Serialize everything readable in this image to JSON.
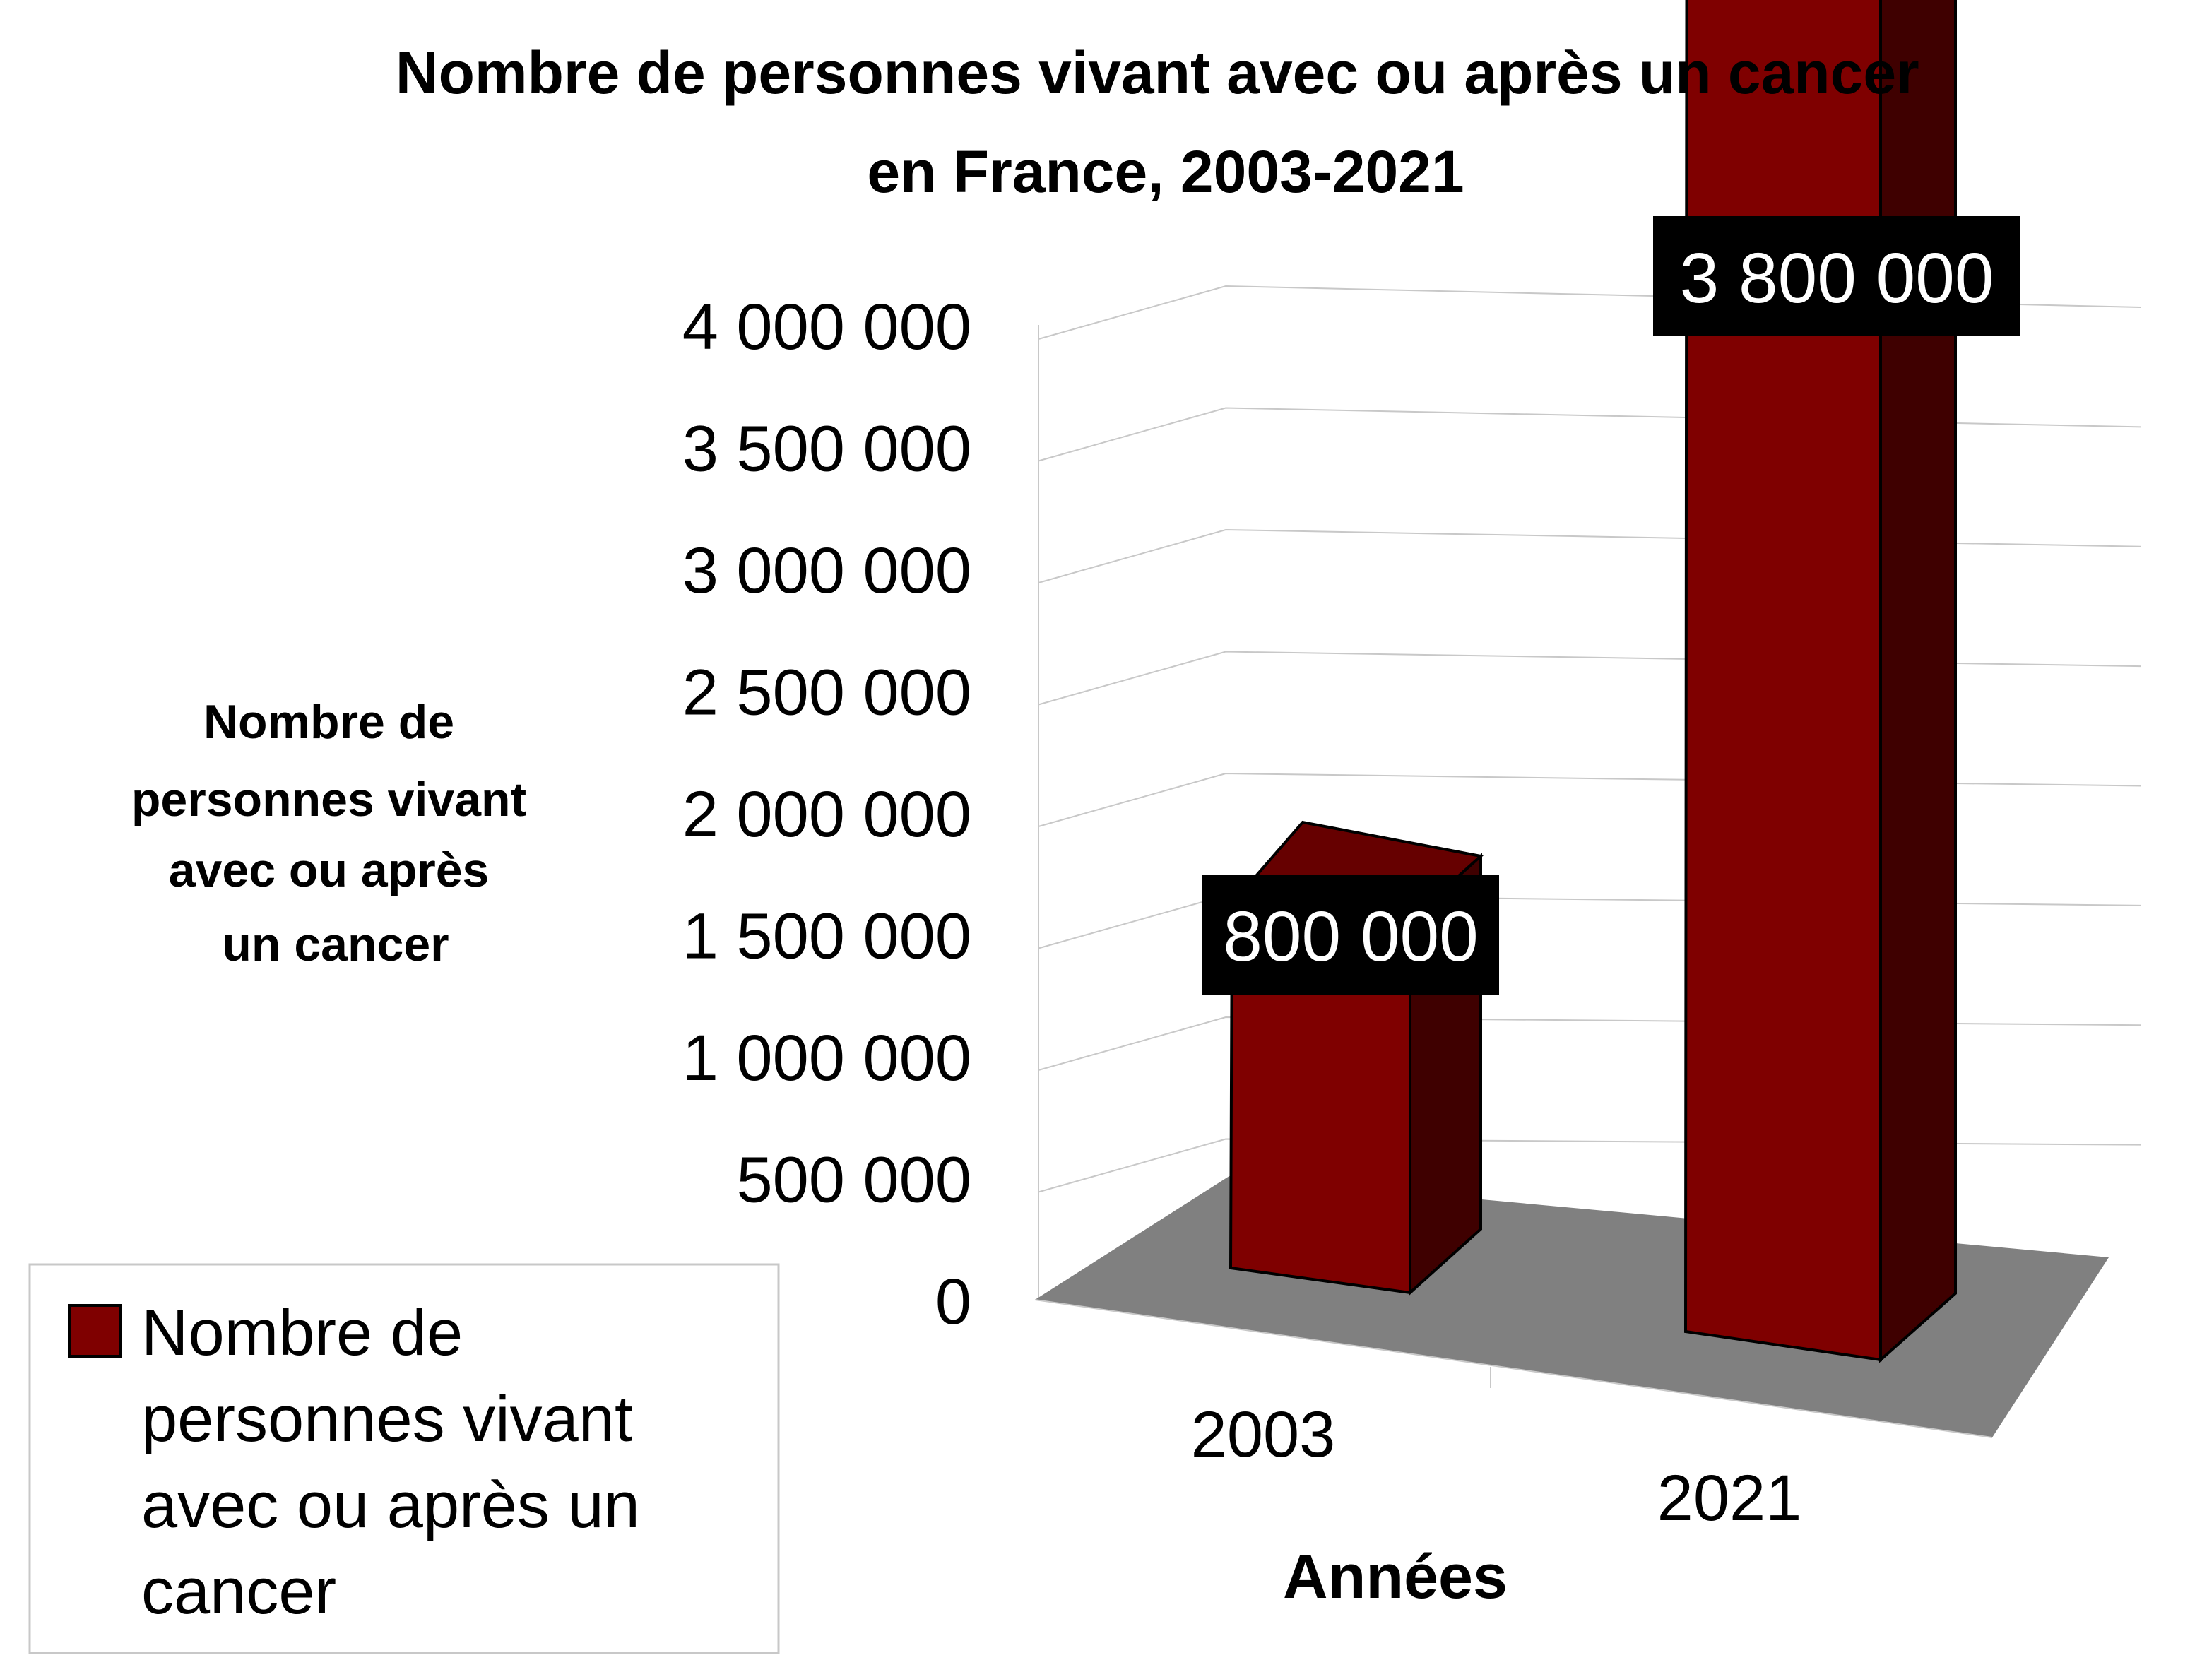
{
  "chart_data": {
    "type": "bar",
    "title_lines": [
      "Nombre de personnes vivant avec ou après un cancer",
      "en France, 2003-2021"
    ],
    "ylabel_lines": [
      "Nombre de",
      "personnes vivant",
      "avec ou après",
      "un cancer"
    ],
    "xlabel": "Années",
    "categories": [
      "2003",
      "2021"
    ],
    "series": [
      {
        "name": "Nombre de personnes vivant avec ou après un cancer",
        "values": [
          800000,
          3800000
        ],
        "data_labels": [
          "800 000",
          "3 800 000"
        ],
        "color": "#7f0000"
      }
    ],
    "yticks": [
      "0",
      "500 000",
      "1 000 000",
      "1 500 000",
      "2 000 000",
      "2 500 000",
      "3 000 000",
      "3 500 000",
      "4 000 000"
    ],
    "ylim": [
      0,
      4000000
    ],
    "legend_lines": [
      "Nombre de",
      "personnes vivant",
      "avec ou après un",
      "cancer"
    ],
    "legend_position": "bottom-left",
    "grid": true,
    "three_d": true,
    "colors": {
      "bar_front": "#7f0000",
      "bar_top": "#660000",
      "bar_side": "#3f0000",
      "floor": "#808080",
      "label_bg": "#000000",
      "gridline": "#c8c8c8"
    }
  }
}
